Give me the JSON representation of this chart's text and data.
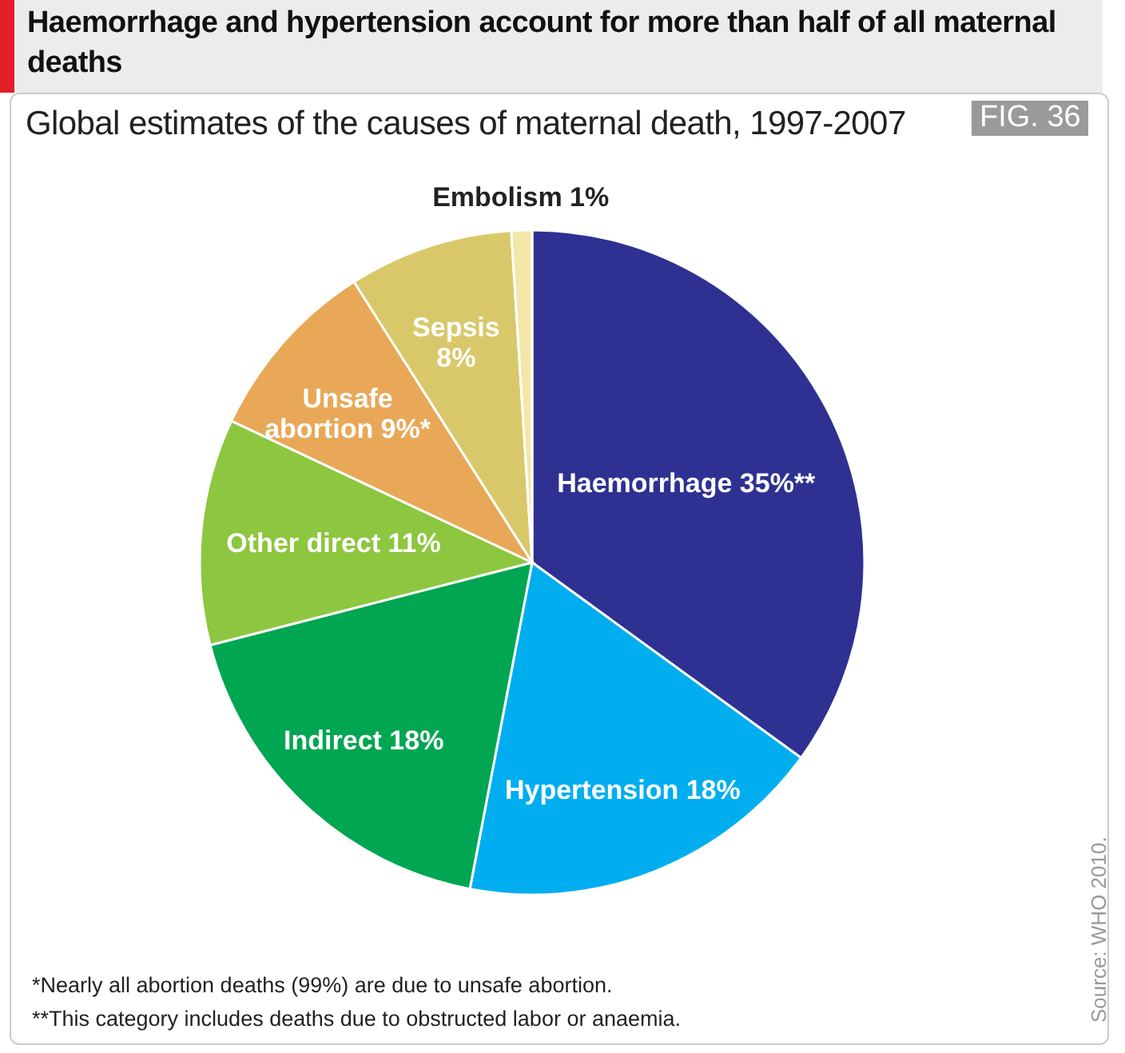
{
  "chart_data": {
    "type": "pie",
    "title": "Haemorrhage and hypertension account for more than half of all maternal deaths",
    "subtitle": "Global estimates of the causes of maternal death, 1997-2007",
    "categories": [
      "Haemorrhage",
      "Hypertension",
      "Indirect",
      "Other direct",
      "Unsafe abortion",
      "Sepsis",
      "Embolism"
    ],
    "values": [
      35,
      18,
      18,
      11,
      9,
      8,
      1
    ],
    "value_labels": [
      "35%**",
      "18%",
      "18%",
      "11%",
      "9%*",
      "8%",
      "1%"
    ],
    "colors": [
      "#2e3192",
      "#00aeef",
      "#00a651",
      "#8dc63f",
      "#e8a857",
      "#d9c86a",
      "#f3e6a6"
    ],
    "annotations": [
      "FIG. 36",
      "Source: WHO 2010.",
      "*Nearly all abortion deaths (99%) are due to unsafe abortion.",
      "**This category includes deaths due to obstructed labor or anaemia."
    ]
  }
}
